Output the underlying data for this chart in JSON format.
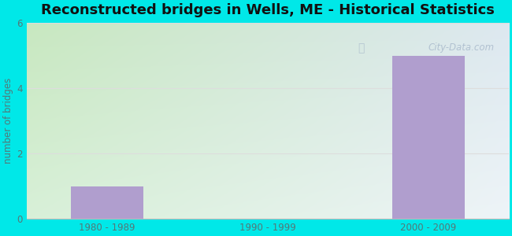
{
  "title": "Reconstructed bridges in Wells, ME - Historical Statistics",
  "categories": [
    "1980 - 1989",
    "1990 - 1999",
    "2000 - 2009"
  ],
  "values": [
    1,
    0,
    5
  ],
  "bar_color": "#b09ece",
  "ylabel": "number of bridges",
  "ylim": [
    0,
    6
  ],
  "yticks": [
    0,
    2,
    4,
    6
  ],
  "background_outer": "#00e8e8",
  "bg_topleft": "#c8e8c0",
  "bg_topright": "#dde8f0",
  "bg_bottomleft": "#d8efd8",
  "bg_bottomright": "#eef4f8",
  "grid_color": "#dddddd",
  "title_fontsize": 13,
  "axis_label_color": "#557777",
  "tick_label_color": "#557777",
  "watermark": "City-Data.com"
}
